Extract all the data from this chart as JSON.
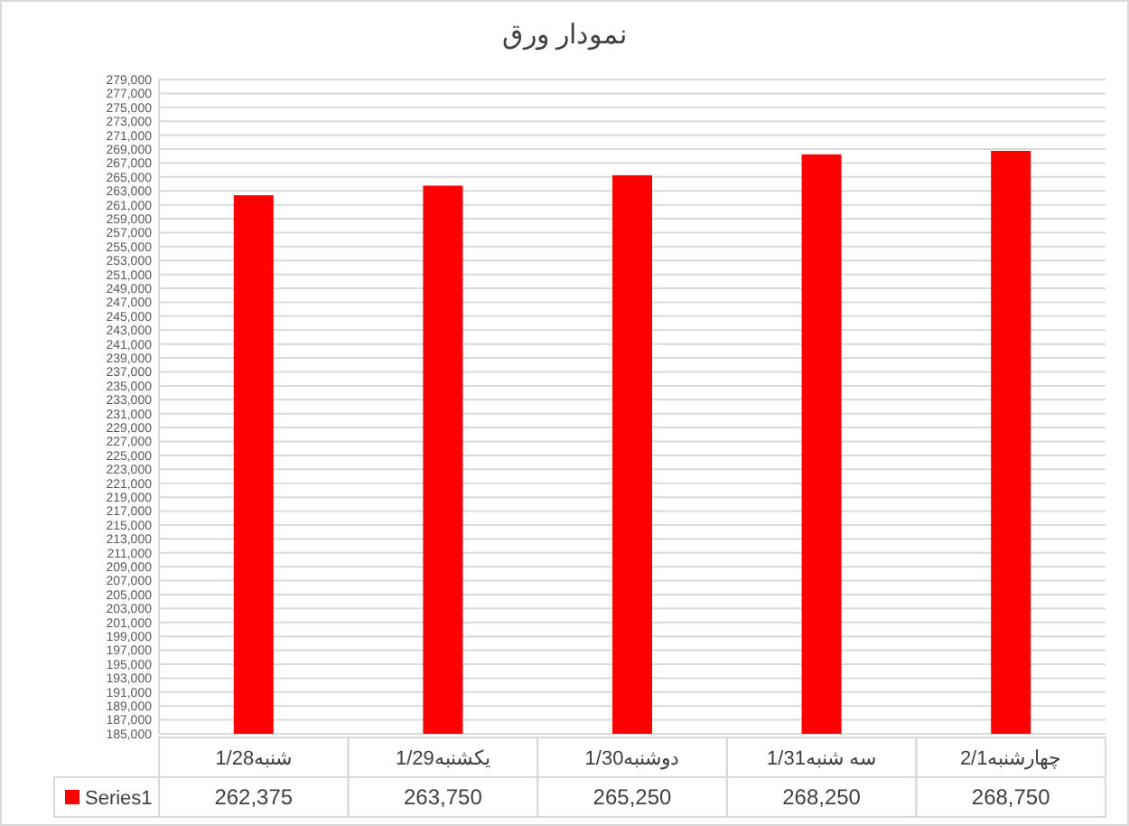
{
  "chart_data": {
    "type": "bar",
    "title": "نمودار ورق",
    "categories": [
      "شنبه1/28",
      "یکشنبه1/29",
      "دوشنبه1/30",
      "سه شنبه1/31",
      "چهارشنبه2/1"
    ],
    "series": [
      {
        "name": "Series1",
        "color": "#ff0000",
        "values": [
          262375,
          263750,
          265250,
          268250,
          268750
        ],
        "value_labels": [
          "262,375",
          "263,750",
          "265,250",
          "268,250",
          "268,750"
        ]
      }
    ],
    "ylim": [
      185000,
      279000
    ],
    "yticks": [
      {
        "value": 185000,
        "label": "185,000"
      },
      {
        "value": 187000,
        "label": "187,000"
      },
      {
        "value": 189000,
        "label": "189,000"
      },
      {
        "value": 191000,
        "label": "191,000"
      },
      {
        "value": 193000,
        "label": "193,000"
      },
      {
        "value": 195000,
        "label": "195,000"
      },
      {
        "value": 197000,
        "label": "197,000"
      },
      {
        "value": 199000,
        "label": "199,000"
      },
      {
        "value": 201000,
        "label": "201,000"
      },
      {
        "value": 203000,
        "label": "203,000"
      },
      {
        "value": 205000,
        "label": "205,000"
      },
      {
        "value": 207000,
        "label": "207,000"
      },
      {
        "value": 209000,
        "label": "209,000"
      },
      {
        "value": 211000,
        "label": "211,000"
      },
      {
        "value": 213000,
        "label": "213,000"
      },
      {
        "value": 215000,
        "label": "215,000"
      },
      {
        "value": 217000,
        "label": "217,000"
      },
      {
        "value": 219000,
        "label": "219,000"
      },
      {
        "value": 221000,
        "label": "221,000"
      },
      {
        "value": 223000,
        "label": "223,000"
      },
      {
        "value": 225000,
        "label": "225,000"
      },
      {
        "value": 227000,
        "label": "227,000"
      },
      {
        "value": 229000,
        "label": "229,000"
      },
      {
        "value": 231000,
        "label": "231,000"
      },
      {
        "value": 233000,
        "label": "233,000"
      },
      {
        "value": 235000,
        "label": "235,000"
      },
      {
        "value": 237000,
        "label": "237,000"
      },
      {
        "value": 239000,
        "label": "239,000"
      },
      {
        "value": 241000,
        "label": "241,000"
      },
      {
        "value": 243000,
        "label": "243,000"
      },
      {
        "value": 245000,
        "label": "245,000"
      },
      {
        "value": 247000,
        "label": "247,000"
      },
      {
        "value": 249000,
        "label": "249,000"
      },
      {
        "value": 251000,
        "label": "251,000"
      },
      {
        "value": 253000,
        "label": "253,000"
      },
      {
        "value": 255000,
        "label": "255,000"
      },
      {
        "value": 257000,
        "label": "257,000"
      },
      {
        "value": 259000,
        "label": "259,000"
      },
      {
        "value": 261000,
        "label": "261,000"
      },
      {
        "value": 263000,
        "label": "263,000"
      },
      {
        "value": 265000,
        "label": "265,000"
      },
      {
        "value": 267000,
        "label": "267,000"
      },
      {
        "value": 269000,
        "label": "269,000"
      },
      {
        "value": 271000,
        "label": "271,000"
      },
      {
        "value": 273000,
        "label": "273,000"
      },
      {
        "value": 275000,
        "label": "275,000"
      },
      {
        "value": 277000,
        "label": "277,000"
      },
      {
        "value": 279000,
        "label": "279,000"
      }
    ],
    "grid": "y",
    "legend": "bottom"
  }
}
